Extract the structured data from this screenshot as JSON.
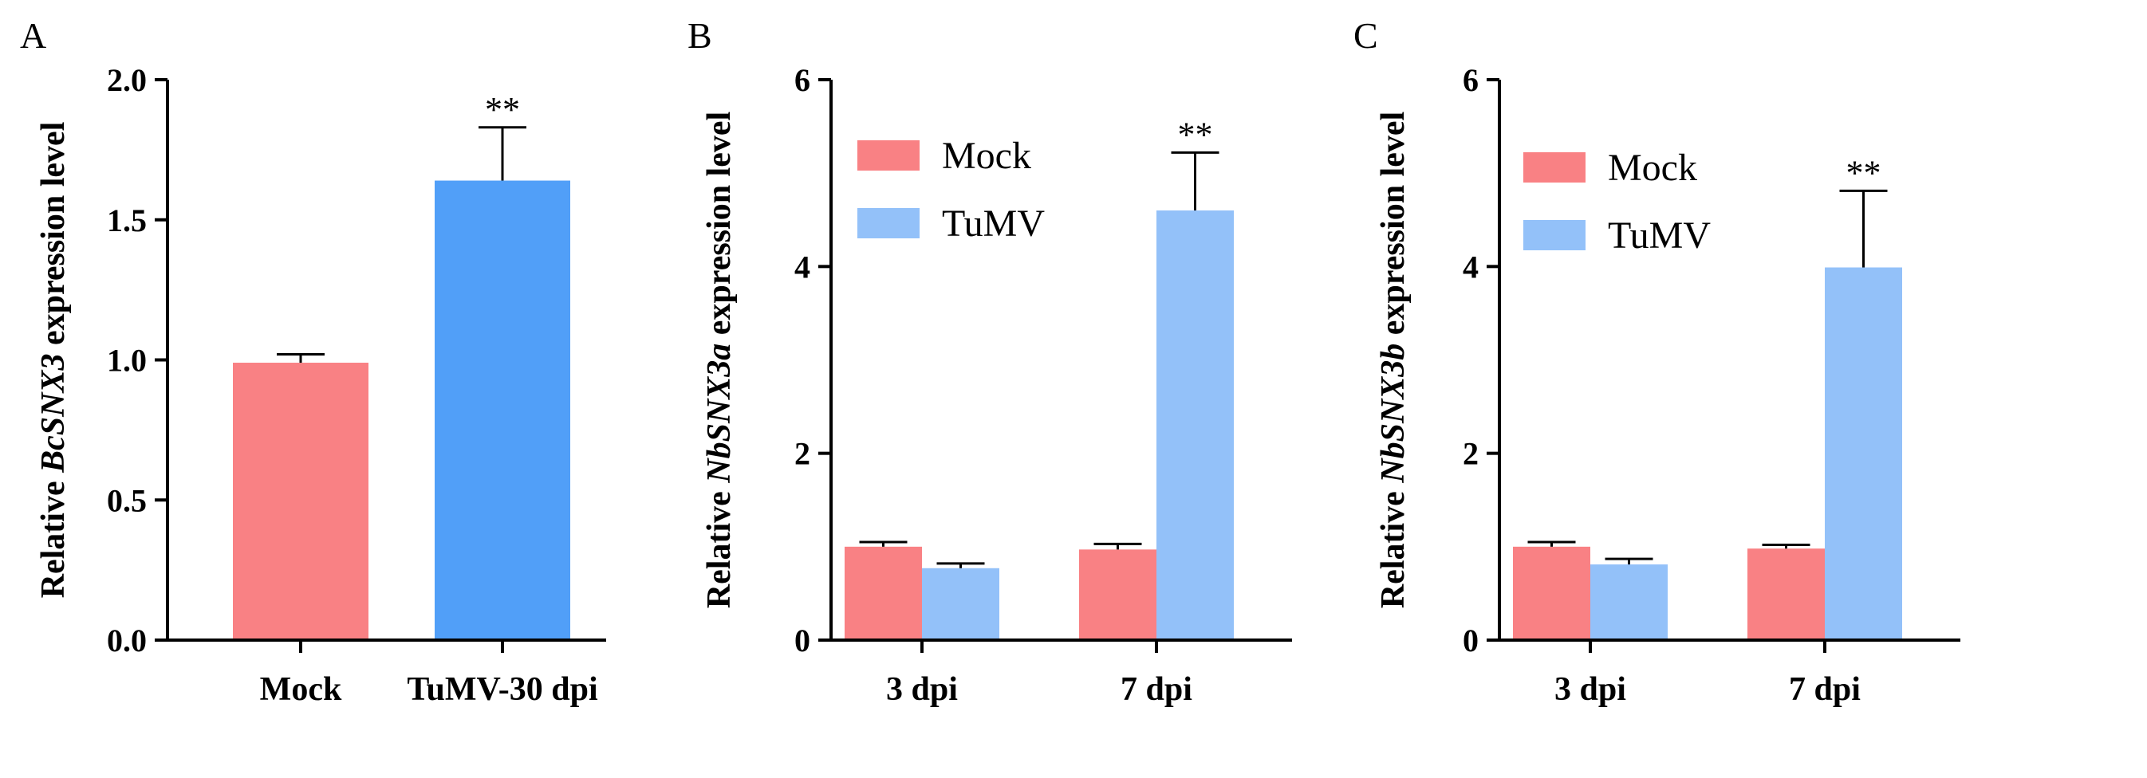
{
  "chart_data": [
    {
      "panel": "A",
      "type": "bar",
      "title": "",
      "xlabel": "",
      "ylabel": {
        "prefix": "Relative ",
        "gene": "BcSNX3",
        "suffix": " expression level"
      },
      "ylim": [
        0,
        2.0
      ],
      "yticks": [
        "0.0",
        "0.5",
        "1.0",
        "1.5",
        "2.0"
      ],
      "ytick_values": [
        0,
        0.5,
        1.0,
        1.5,
        2.0
      ],
      "categories": [
        "Mock",
        "TuMV-30 dpi"
      ],
      "values": [
        0.99,
        1.64
      ],
      "errors": [
        0.03,
        0.19
      ],
      "colors": [
        "#f98184",
        "#519ff8"
      ],
      "annotations": [
        "",
        "**"
      ],
      "legend": null
    },
    {
      "panel": "B",
      "type": "bar",
      "title": "",
      "xlabel": "",
      "ylabel": {
        "prefix": "Relative ",
        "gene": "NbSNX3a",
        "suffix": " expression level"
      },
      "ylim": [
        0,
        6
      ],
      "yticks": [
        "0",
        "2",
        "4",
        "6"
      ],
      "ytick_values": [
        0,
        2,
        4,
        6
      ],
      "categories": [
        "3 dpi",
        "7 dpi"
      ],
      "series": [
        {
          "name": "Mock",
          "color": "#f98184",
          "values": [
            1.0,
            0.97
          ],
          "errors": [
            0.05,
            0.06
          ]
        },
        {
          "name": "TuMV",
          "color": "#93c1f9",
          "values": [
            0.77,
            4.6
          ],
          "errors": [
            0.05,
            0.62
          ]
        }
      ],
      "annotations": [
        {
          "category": "7 dpi",
          "series": "TuMV",
          "text": "**"
        }
      ],
      "legend": "top-left"
    },
    {
      "panel": "C",
      "type": "bar",
      "title": "",
      "xlabel": "",
      "ylabel": {
        "prefix": "Relative ",
        "gene": "NbSNX3b",
        "suffix": " expression level"
      },
      "ylim": [
        0,
        6
      ],
      "yticks": [
        "0",
        "2",
        "4",
        "6"
      ],
      "ytick_values": [
        0,
        2,
        4,
        6
      ],
      "categories": [
        "3 dpi",
        "7 dpi"
      ],
      "series": [
        {
          "name": "Mock",
          "color": "#f98184",
          "values": [
            1.0,
            0.98
          ],
          "errors": [
            0.05,
            0.04
          ]
        },
        {
          "name": "TuMV",
          "color": "#93c1f9",
          "values": [
            0.81,
            3.99
          ],
          "errors": [
            0.06,
            0.82
          ]
        }
      ],
      "annotations": [
        {
          "category": "7 dpi",
          "series": "TuMV",
          "text": "**"
        }
      ],
      "legend": "top-left"
    }
  ]
}
